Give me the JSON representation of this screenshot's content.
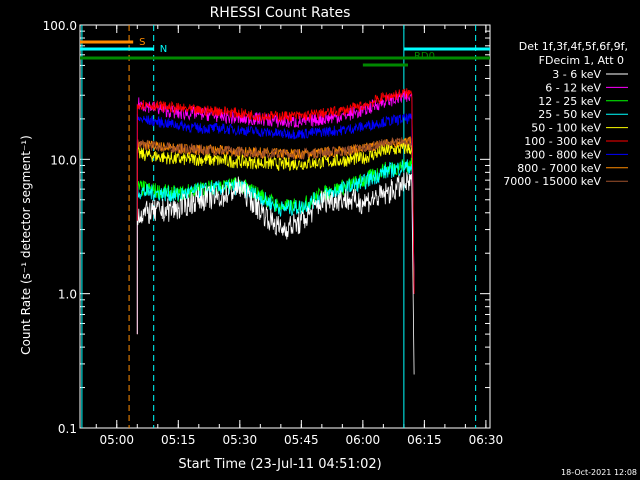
{
  "chart_data": {
    "type": "line",
    "title": "RHESSI Count Rates",
    "xlabel": "Start Time (23-Jul-11 04:51:02)",
    "ylabel": "Count Rate (s⁻¹ detector segment⁻¹)",
    "yscale": "log",
    "ylim": [
      0.1,
      100.0
    ],
    "xlim": [
      "04:51:02",
      "06:31:00"
    ],
    "x_ticks": [
      "05:00",
      "05:15",
      "05:30",
      "05:45",
      "06:00",
      "06:15",
      "06:30"
    ],
    "y_ticks": [
      "0.1",
      "1.0",
      "10.0",
      "100.0"
    ],
    "grid": false,
    "legend_position": "top-right",
    "legend_header": [
      "Det 1f,3f,4f,5f,6f,9f,",
      "FDecim 1, Att 0"
    ],
    "series": [
      {
        "name": "3 - 6 keV",
        "color": "#ffffff",
        "x": [
          "05:05",
          "05:10",
          "05:15",
          "05:20",
          "05:25",
          "05:30",
          "05:35",
          "05:40",
          "05:45",
          "05:50",
          "05:55",
          "06:00",
          "06:05",
          "06:10",
          "06:12"
        ],
        "values": [
          3.9,
          4.1,
          4.3,
          5.1,
          5.2,
          6.2,
          4.2,
          3.0,
          3.4,
          4.9,
          5.1,
          4.8,
          5.4,
          6.5,
          6.6
        ]
      },
      {
        "name": "6 - 12 keV",
        "color": "#ff00ff",
        "x": [
          "05:05",
          "05:10",
          "05:15",
          "05:20",
          "05:25",
          "05:30",
          "05:35",
          "05:40",
          "05:45",
          "05:50",
          "05:55",
          "06:00",
          "06:05",
          "06:10",
          "06:12"
        ],
        "values": [
          26,
          24,
          22,
          22,
          21,
          20,
          20,
          19,
          19,
          20,
          21,
          23,
          27,
          29,
          29
        ]
      },
      {
        "name": "12 - 25 keV",
        "color": "#00ff00",
        "x": [
          "05:05",
          "05:10",
          "05:15",
          "05:20",
          "05:25",
          "05:30",
          "05:35",
          "05:40",
          "05:45",
          "05:50",
          "05:55",
          "06:00",
          "06:05",
          "06:10",
          "06:12"
        ],
        "values": [
          6.2,
          5.8,
          5.5,
          6.0,
          6.3,
          6.5,
          5.4,
          4.4,
          4.5,
          5.5,
          6.2,
          6.9,
          8.3,
          9.0,
          9.0
        ]
      },
      {
        "name": "25 - 50 keV",
        "color": "#00ffff",
        "x": [
          "05:05",
          "05:10",
          "05:15",
          "05:20",
          "05:25",
          "05:30",
          "05:35",
          "05:40",
          "05:45",
          "05:50",
          "05:55",
          "06:00",
          "06:05",
          "06:10",
          "06:12"
        ],
        "values": [
          5.8,
          5.6,
          5.4,
          5.8,
          6.1,
          6.2,
          5.2,
          4.3,
          4.4,
          5.3,
          6.0,
          6.7,
          8.0,
          8.8,
          8.8
        ]
      },
      {
        "name": "50 - 100 keV",
        "color": "#ffff00",
        "x": [
          "05:05",
          "05:10",
          "05:15",
          "05:20",
          "05:25",
          "05:30",
          "05:35",
          "05:40",
          "05:45",
          "05:50",
          "05:55",
          "06:00",
          "06:05",
          "06:10",
          "06:12"
        ],
        "values": [
          11,
          10.5,
          10,
          10,
          9.8,
          9.6,
          9.4,
          9.2,
          9.3,
          9.5,
          9.8,
          10.2,
          11.5,
          12,
          12
        ]
      },
      {
        "name": "100 - 300 keV",
        "color": "#ff0000",
        "x": [
          "05:05",
          "05:10",
          "05:15",
          "05:20",
          "05:25",
          "05:30",
          "05:35",
          "05:40",
          "05:45",
          "05:50",
          "05:55",
          "06:00",
          "06:05",
          "06:10",
          "06:12"
        ],
        "values": [
          26,
          25,
          24,
          23,
          23,
          22,
          21,
          21,
          21,
          22,
          23,
          25,
          29,
          31,
          31
        ]
      },
      {
        "name": "300 - 800 keV",
        "color": "#0000ff",
        "x": [
          "05:05",
          "05:10",
          "05:15",
          "05:20",
          "05:25",
          "05:30",
          "05:35",
          "05:40",
          "05:45",
          "05:50",
          "05:55",
          "06:00",
          "06:05",
          "06:10",
          "06:12"
        ],
        "values": [
          20,
          19,
          18,
          17,
          17,
          16.5,
          16,
          15.5,
          15.5,
          16,
          16.5,
          17.5,
          19,
          20,
          20
        ]
      },
      {
        "name": "800 - 7000 keV",
        "color": "#ff8c00",
        "x": [
          "05:05",
          "05:10",
          "05:15",
          "05:20",
          "05:25",
          "05:30",
          "05:35",
          "05:40",
          "05:45",
          "05:50",
          "05:55",
          "06:00",
          "06:05",
          "06:10",
          "06:12"
        ],
        "values": [
          13,
          12.5,
          12,
          11.8,
          11.6,
          11.4,
          11.2,
          11,
          11,
          11.2,
          11.5,
          12,
          13,
          13.5,
          13.5
        ]
      },
      {
        "name": "7000 - 15000 keV",
        "color": "#a0522d",
        "x": [
          "05:05",
          "05:10",
          "05:15",
          "05:20",
          "05:25",
          "05:30",
          "05:35",
          "05:40",
          "05:45",
          "05:50",
          "05:55",
          "06:00",
          "06:05",
          "06:10",
          "06:12"
        ],
        "values": [
          13,
          12.5,
          12,
          11.8,
          11.6,
          11.4,
          11.2,
          11,
          11,
          11.2,
          11.5,
          12,
          13,
          13.5,
          13.5
        ]
      }
    ],
    "vertical_markers": [
      {
        "time": "04:51:30",
        "color": "#00ffff",
        "style": "solid"
      },
      {
        "time": "05:03:00",
        "color": "#ff8c00",
        "style": "dashed"
      },
      {
        "time": "05:09:00",
        "color": "#00ffff",
        "style": "dashed"
      },
      {
        "time": "06:10:00",
        "color": "#00ffff",
        "style": "solid"
      },
      {
        "time": "06:27:30",
        "color": "#00ffff",
        "style": "dashed"
      }
    ],
    "flag_bars": [
      {
        "label": "S",
        "color": "#ff8c00",
        "start": "04:51:02",
        "end": "05:04:00",
        "level": 0
      },
      {
        "label": "N",
        "color": "#00ffff",
        "start": "04:51:02",
        "end": "05:09:00",
        "level": 1
      },
      {
        "label": "",
        "color": "#00ffff",
        "start": "06:10:00",
        "end": "06:31:00",
        "level": 1
      },
      {
        "label": "",
        "color": "#008800",
        "start": "04:51:02",
        "end": "06:31:00",
        "level": 2
      },
      {
        "label": "RD0",
        "color": "#008800",
        "start": "06:00:00",
        "end": "06:11:00",
        "level": 3
      }
    ],
    "footer_timestamp": "18-Oct-2021 12:08"
  }
}
